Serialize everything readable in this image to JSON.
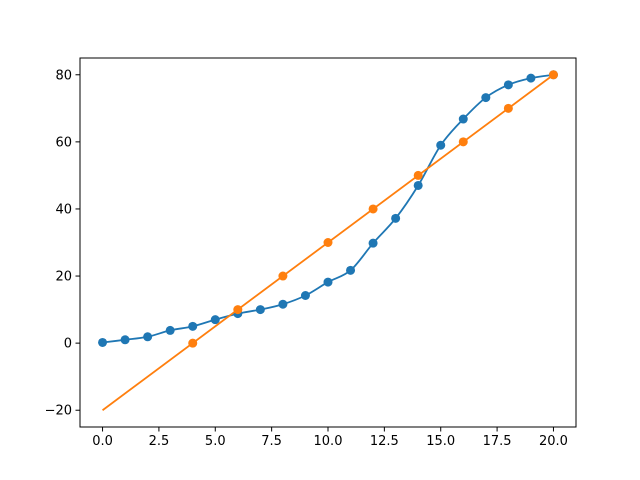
{
  "chart_data": {
    "type": "line",
    "title": "",
    "xlabel": "",
    "ylabel": "",
    "xlim": [
      -1.0,
      21.0
    ],
    "ylim": [
      -25,
      85
    ],
    "grid": false,
    "legend": null,
    "x_ticks": [
      0.0,
      2.5,
      5.0,
      7.5,
      10.0,
      12.5,
      15.0,
      17.5,
      20.0
    ],
    "x_tick_labels": [
      "0.0",
      "2.5",
      "5.0",
      "7.5",
      "10.0",
      "12.5",
      "15.0",
      "17.5",
      "20.0"
    ],
    "y_ticks": [
      -20,
      0,
      20,
      40,
      60,
      80
    ],
    "y_tick_labels": [
      "−20",
      "0",
      "20",
      "40",
      "60",
      "80"
    ],
    "series": [
      {
        "color": "#1f77b4",
        "smooth_line": true,
        "x": [
          0,
          1,
          2,
          3,
          4,
          5,
          6,
          7,
          8,
          9,
          10,
          11,
          12,
          13,
          14,
          15,
          16,
          17,
          18,
          19,
          20
        ],
        "y": [
          0.2,
          1.0,
          1.9,
          3.8,
          5.0,
          7.0,
          8.8,
          10.0,
          11.6,
          14.2,
          18.2,
          21.7,
          29.8,
          37.2,
          47.0,
          59.0,
          66.8,
          73.2,
          77.0,
          79.0,
          80.0
        ]
      },
      {
        "color": "#ff7f0e",
        "smooth_line": false,
        "line_x": [
          0,
          20
        ],
        "line_y": [
          -20,
          80
        ],
        "x": [
          4,
          6,
          8,
          10,
          12,
          14,
          16,
          18,
          20
        ],
        "y": [
          0,
          10,
          20,
          30,
          40,
          50,
          60,
          70,
          80
        ]
      }
    ]
  }
}
